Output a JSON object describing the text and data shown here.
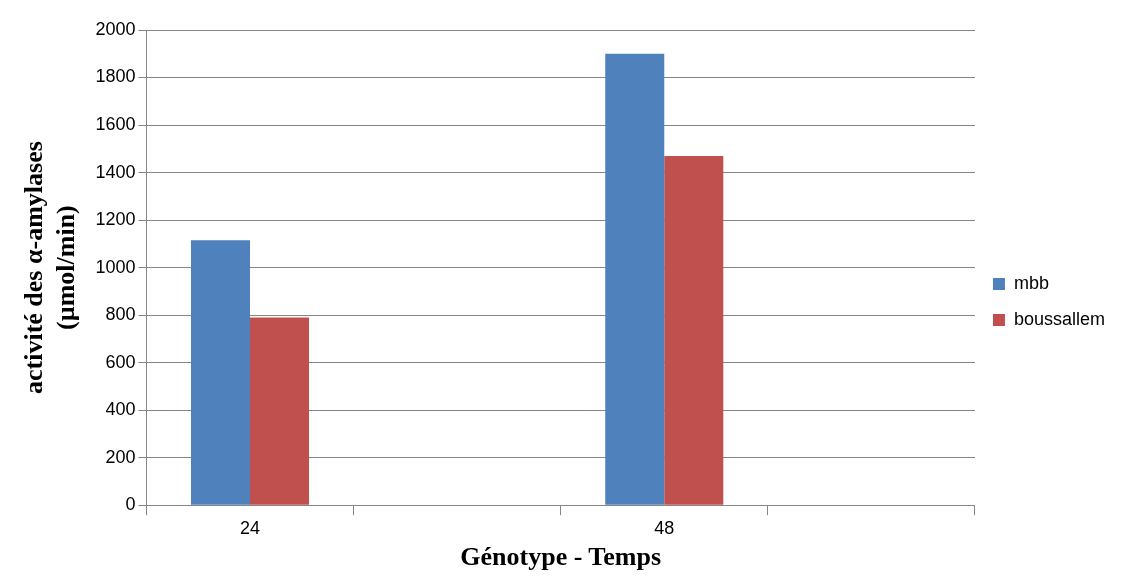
{
  "chart_data": {
    "type": "bar",
    "xlabel": "Génotype - Temps",
    "ylabel": "activité des α-amylases\n(µmol/min)",
    "categories": [
      "24",
      null,
      "48",
      null
    ],
    "series": [
      {
        "name": "mbb",
        "color": "#4f81bd",
        "values": [
          1115,
          null,
          1900,
          null
        ]
      },
      {
        "name": "boussallem",
        "color": "#c0504d",
        "values": [
          790,
          null,
          1470,
          null
        ]
      }
    ],
    "ylim": [
      0,
      2000
    ],
    "yticks": [
      0,
      200,
      400,
      600,
      800,
      1000,
      1200,
      1400,
      1600,
      1800,
      2000
    ],
    "grid": "y",
    "legend": "right"
  }
}
